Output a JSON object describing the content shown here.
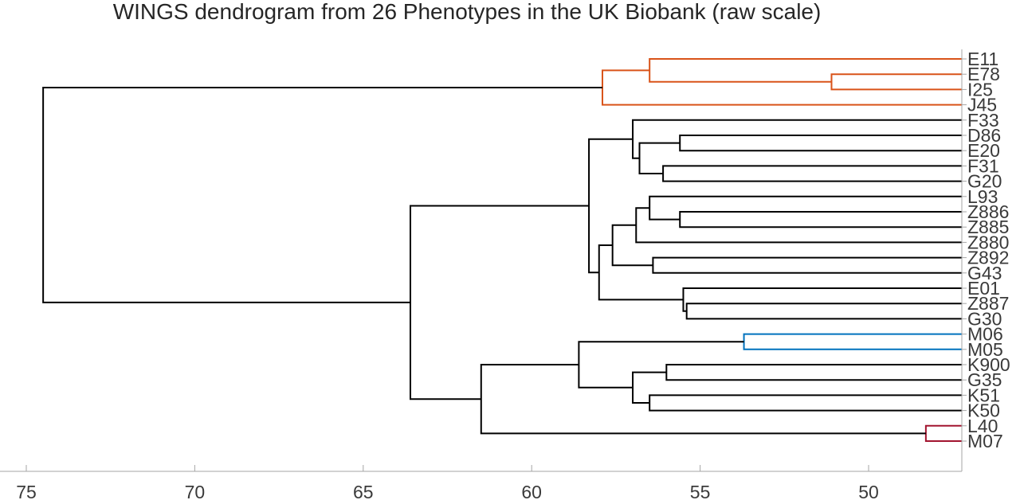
{
  "chart_data": {
    "type": "dendrogram",
    "title": "WINGS dendrogram from 26 Phenotypes in the UK Biobank (raw scale)",
    "xlabel": "",
    "ylabel": "",
    "x_axis_reversed": true,
    "xlim": [
      75.5,
      47.4
    ],
    "xticks": [
      75,
      70,
      65,
      60,
      55,
      50
    ],
    "leaves": [
      "E11",
      "E78",
      "I25",
      "J45",
      "F33",
      "D86",
      "E20",
      "F31",
      "G20",
      "L93",
      "Z886",
      "Z885",
      "Z880",
      "Z892",
      "G43",
      "E01",
      "Z887",
      "G30",
      "M06",
      "M05",
      "K900",
      "G35",
      "K51",
      "K50",
      "L40",
      "M07"
    ],
    "colors": {
      "default": "#000000",
      "cluster_orange": "#d95319",
      "cluster_blue": "#0072bd",
      "cluster_red": "#a2142f",
      "axis": "#a6a6a6"
    },
    "merges": [
      {
        "id": "n1",
        "children": [
          "E78",
          "I25"
        ],
        "height": 51.1,
        "color": "cluster_orange"
      },
      {
        "id": "n2",
        "children": [
          "E11",
          "n1"
        ],
        "height": 56.5,
        "color": "cluster_orange"
      },
      {
        "id": "n3",
        "children": [
          "n2",
          "J45"
        ],
        "height": 57.9,
        "color": "cluster_orange"
      },
      {
        "id": "n4",
        "children": [
          "D86",
          "E20"
        ],
        "height": 55.6,
        "color": "default"
      },
      {
        "id": "n5",
        "children": [
          "F31",
          "G20"
        ],
        "height": 56.1,
        "color": "default"
      },
      {
        "id": "n6",
        "children": [
          "n4",
          "n5"
        ],
        "height": 56.8,
        "color": "default"
      },
      {
        "id": "n7",
        "children": [
          "F33",
          "n6"
        ],
        "height": 57.0,
        "color": "default"
      },
      {
        "id": "n8",
        "children": [
          "Z886",
          "Z885"
        ],
        "height": 55.6,
        "color": "default"
      },
      {
        "id": "n9",
        "children": [
          "L93",
          "n8"
        ],
        "height": 56.5,
        "color": "default"
      },
      {
        "id": "n10",
        "children": [
          "n9",
          "Z880"
        ],
        "height": 56.9,
        "color": "default"
      },
      {
        "id": "n11",
        "children": [
          "Z892",
          "G43"
        ],
        "height": 56.4,
        "color": "default"
      },
      {
        "id": "n12",
        "children": [
          "n10",
          "n11"
        ],
        "height": 57.6,
        "color": "default"
      },
      {
        "id": "n13",
        "children": [
          "Z887",
          "G30"
        ],
        "height": 55.4,
        "color": "default"
      },
      {
        "id": "n14",
        "children": [
          "E01",
          "n13"
        ],
        "height": 55.5,
        "color": "default"
      },
      {
        "id": "n15",
        "children": [
          "n12",
          "n14"
        ],
        "height": 58.0,
        "color": "default"
      },
      {
        "id": "n16",
        "children": [
          "n7",
          "n15"
        ],
        "height": 58.3,
        "color": "default"
      },
      {
        "id": "n17",
        "children": [
          "M06",
          "M05"
        ],
        "height": 53.7,
        "color": "cluster_blue"
      },
      {
        "id": "n18",
        "children": [
          "K900",
          "G35"
        ],
        "height": 56.0,
        "color": "default"
      },
      {
        "id": "n19",
        "children": [
          "K51",
          "K50"
        ],
        "height": 56.5,
        "color": "default"
      },
      {
        "id": "n20",
        "children": [
          "n18",
          "n19"
        ],
        "height": 57.0,
        "color": "default"
      },
      {
        "id": "n21",
        "children": [
          "n17",
          "n20"
        ],
        "height": 58.6,
        "color": "default"
      },
      {
        "id": "n22",
        "children": [
          "L40",
          "M07"
        ],
        "height": 48.3,
        "color": "cluster_red"
      },
      {
        "id": "n23",
        "children": [
          "n21",
          "n22"
        ],
        "height": 61.5,
        "color": "default"
      },
      {
        "id": "n24",
        "children": [
          "n16",
          "n23"
        ],
        "height": 63.6,
        "color": "default"
      },
      {
        "id": "n25",
        "children": [
          "n3",
          "n24"
        ],
        "height": 74.5,
        "color": "default"
      }
    ]
  }
}
